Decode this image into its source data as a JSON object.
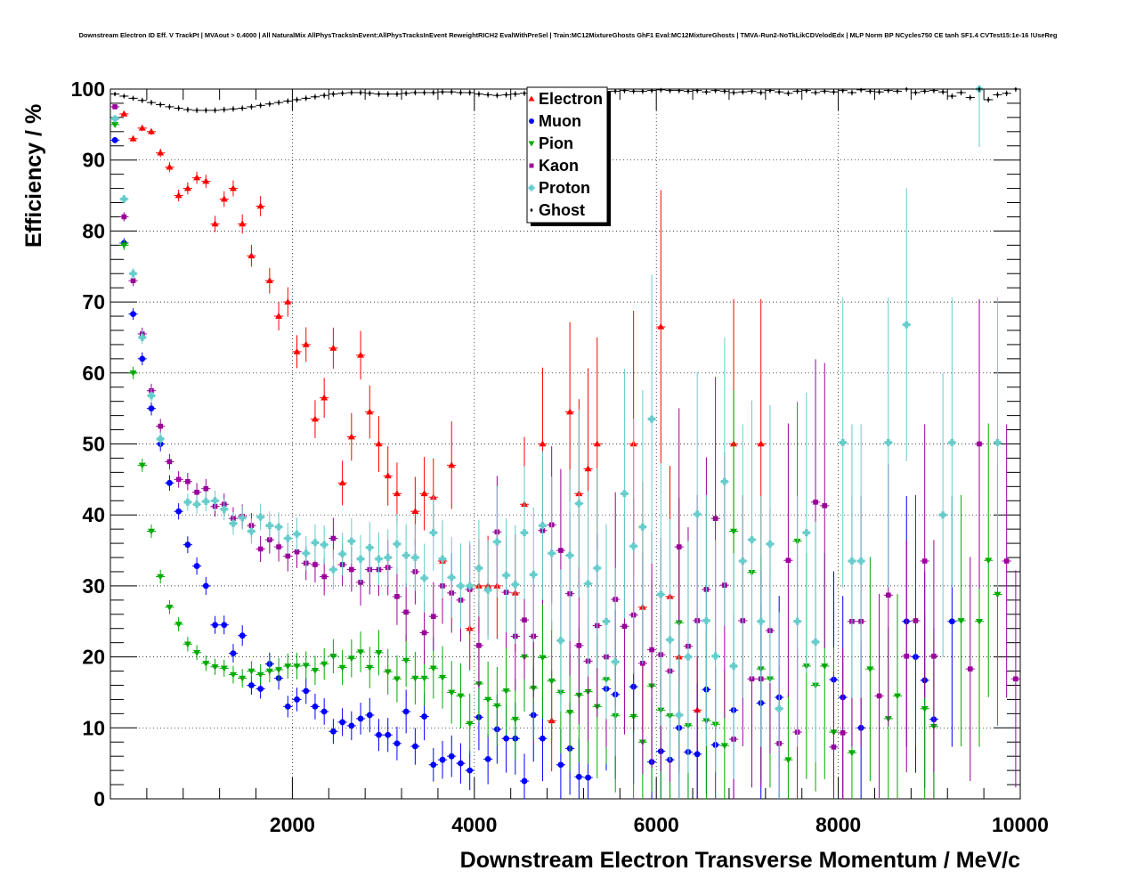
{
  "chart_data": {
    "type": "scatter",
    "title": "Downstream Electron ID Eff. V TrackPt | MVAout > 0.4000 | All NaturalMix AllPhysTracksInEvent:AllPhysTracksInEvent ReweightRICH2 EvalWithPreSel | Train:MC12MixtureGhosts GhF1 Eval:MC12MixtureGhosts | TMVA-Run2-NoTkLikCDVelodEdx | MLP Norm BP NCycles750 CE tanh SF1.4 CVTest15:1e-16 !UseReg",
    "xlabel": "Downstream Electron Transverse Momentum / MeV/c",
    "ylabel": "Efficiency / %",
    "xlim": [
      0,
      10000
    ],
    "ylim": [
      0,
      100
    ],
    "grid": true,
    "x_ticks": [
      "2000",
      "4000",
      "6000",
      "8000",
      "10000"
    ],
    "y_ticks": [
      "0",
      "10",
      "20",
      "30",
      "40",
      "50",
      "60",
      "70",
      "80",
      "90",
      "100"
    ],
    "legend_position": "top-center",
    "bin_width": 100,
    "bin_first_center": 50,
    "series": [
      {
        "name": "Electron",
        "color": "#ff0000",
        "marker": "triangle-up",
        "points": {
          "1": 96.5,
          "2": 93,
          "3": 94.5,
          "4": 94,
          "5": 91,
          "6": 89,
          "7": 85,
          "8": 86,
          "9": 87.5,
          "10": 87,
          "11": 81,
          "12": 84.5,
          "13": 86,
          "14": 81,
          "15": 76.5,
          "16": 83.5,
          "17": 73,
          "18": 68,
          "19": 70,
          "20": 63,
          "21": 64,
          "22": 53.5,
          "23": 56.5,
          "24": 63.5,
          "25": 44.5,
          "26": 51,
          "27": 62.5,
          "28": 54.5,
          "29": 50,
          "30": 45.5,
          "31": 43,
          "33": 40.5,
          "34": 43,
          "35": 42.5,
          "36": 33.5,
          "37": 47,
          "39": 24,
          "40": 30,
          "41": 30,
          "42": 30,
          "44": 29,
          "45": 41.5,
          "47": 50,
          "48": 11,
          "50": 54.5,
          "51": 43,
          "52": 46.5,
          "53": 50,
          "57": 50,
          "58": 27,
          "60": 66.5,
          "61": 28.5,
          "62": 20,
          "64": 12.5,
          "68": 50,
          "71": 50
        }
      },
      {
        "name": "Muon",
        "color": "#0000ff",
        "marker": "circle",
        "points": {
          "0": 92.8,
          "1": 78.3,
          "2": 68.3,
          "3": 62,
          "4": 55,
          "5": 50,
          "6": 44.5,
          "7": 40.5,
          "8": 35.8,
          "9": 32.8,
          "10": 30,
          "11": 24.5,
          "12": 24.5,
          "13": 20.5,
          "14": 23,
          "15": 16,
          "16": 15.5,
          "17": 19,
          "18": 17,
          "19": 13,
          "20": 14,
          "21": 15.2,
          "22": 13,
          "23": 12.3,
          "24": 9.5,
          "25": 10.8,
          "26": 10.3,
          "27": 11.3,
          "28": 11.8,
          "29": 9,
          "30": 9,
          "31": 7.8,
          "32": 12.3,
          "33": 7.4,
          "34": 11.6,
          "35": 4.8,
          "36": 5.5,
          "37": 6,
          "38": 5,
          "39": 4,
          "40": 11.5,
          "41": 5.6,
          "42": 9.8,
          "43": 8.5,
          "44": 8.5,
          "45": 2.5,
          "46": 11.8,
          "47": 8.5,
          "49": 4.8,
          "50": 7.1,
          "51": 3.1,
          "52": 3,
          "54": 15.5,
          "55": 14.7,
          "57": 15.8,
          "59": 5.2,
          "60": 6.7,
          "61": 5.5,
          "62": 10,
          "63": 6.6,
          "64": 6.3,
          "65": 15.4,
          "66": 7.6,
          "68": 12.5,
          "71": 13.5,
          "73": 14.3,
          "79": 16.8,
          "80": 14.3,
          "82": 10,
          "87": 25,
          "88": 20,
          "89": 16.7,
          "90": 11.2,
          "92": 25
        }
      },
      {
        "name": "Pion",
        "color": "#00aa00",
        "marker": "triangle-down",
        "points": {
          "0": 95,
          "1": 78,
          "2": 60,
          "3": 47,
          "4": 37.7,
          "5": 31.3,
          "6": 27,
          "7": 24.6,
          "8": 21.8,
          "9": 20.6,
          "10": 19.1,
          "11": 18.6,
          "12": 18.4,
          "13": 17.5,
          "14": 17,
          "15": 18,
          "16": 17.5,
          "17": 18,
          "18": 18.2,
          "19": 18.7,
          "20": 18.7,
          "21": 18.8,
          "22": 18.1,
          "23": 19,
          "24": 20.1,
          "25": 18.5,
          "26": 19.8,
          "27": 20.7,
          "28": 18.5,
          "29": 20.6,
          "30": 17.9,
          "31": 16.9,
          "32": 19.5,
          "33": 17,
          "34": 17,
          "35": 18.4,
          "36": 17.1,
          "37": 15,
          "38": 14.5,
          "39": 10.6,
          "40": 16.2,
          "41": 14,
          "42": 13.1,
          "43": 15.2,
          "44": 11.2,
          "45": 20,
          "46": 15.6,
          "47": 19.9,
          "48": 16.6,
          "49": 15,
          "50": 12.2,
          "51": 14.6,
          "52": 15.1,
          "53": 13,
          "54": 16.8,
          "55": 11.7,
          "57": 11.6,
          "58": 8,
          "59": 15.9,
          "60": 12.5,
          "61": 11.7,
          "62": 24.8,
          "63": 10.3,
          "65": 11,
          "66": 10.5,
          "67": 7.5,
          "68": 37.7,
          "70": 31.9,
          "71": 18.3,
          "72": 16.9,
          "74": 5.5,
          "75": 36.3,
          "76": 18.7,
          "77": 16,
          "78": 18.7,
          "79": 9.4,
          "81": 6.5,
          "83": 18.3,
          "85": 11.3,
          "86": 14.5,
          "89": 12.7,
          "90": 10.2,
          "93": 25.1,
          "95": 25,
          "96": 33.6,
          "97": 28.8
        }
      },
      {
        "name": "Kaon",
        "color": "#990099",
        "marker": "square",
        "points": {
          "0": 97.5,
          "1": 82,
          "2": 73,
          "3": 65.5,
          "4": 57.5,
          "5": 52.5,
          "6": 47.5,
          "7": 45,
          "8": 44.7,
          "9": 43.2,
          "10": 43.7,
          "11": 41.2,
          "12": 41.5,
          "13": 39.5,
          "14": 39.8,
          "15": 38.5,
          "16": 35.2,
          "17": 36.5,
          "18": 35.5,
          "19": 34.2,
          "20": 34.8,
          "21": 33.2,
          "22": 33,
          "23": 31.3,
          "24": 36.7,
          "25": 33,
          "26": 32.3,
          "27": 30.5,
          "28": 32.3,
          "29": 32.3,
          "30": 32.6,
          "31": 28.5,
          "32": 26.3,
          "33": 32,
          "34": 23.4,
          "35": 25.7,
          "36": 30,
          "37": 29,
          "38": 28,
          "39": 29.5,
          "40": 21.6,
          "42": 37.6,
          "43": 29.1,
          "44": 22.9,
          "45": 25.2,
          "46": 22.9,
          "47": 37.8,
          "48": 38.6,
          "49": 35,
          "50": 28.9,
          "51": 21.6,
          "52": 19.4,
          "53": 24.4,
          "54": 20,
          "55": 28.1,
          "56": 24.3,
          "57": 25.9,
          "58": 19.1,
          "59": 21,
          "60": 20.3,
          "61": 18,
          "62": 35.5,
          "63": 21.5,
          "64": 25.1,
          "65": 29.5,
          "66": 39.5,
          "67": 30.1,
          "68": 8.4,
          "69": 25.1,
          "70": 16.9,
          "71": 16.9,
          "72": 23.7,
          "73": 7.8,
          "74": 33.6,
          "75": 9.4,
          "77": 41.8,
          "78": 41.3,
          "79": 7.3,
          "80": 9.3,
          "81": 25,
          "82": 25,
          "84": 14.5,
          "85": 28.7,
          "87": 20.1,
          "88": 25.1,
          "89": 33.5,
          "90": 20.1,
          "94": 18.3,
          "95": 50,
          "98": 33.5,
          "99": 16.9
        }
      },
      {
        "name": "Proton",
        "color": "#66cccc",
        "marker": "cross",
        "points": {
          "0": 95.8,
          "1": 84.5,
          "2": 74,
          "3": 65,
          "4": 56.8,
          "5": 50.7,
          "8": 41.8,
          "9": 41.5,
          "10": 41.9,
          "11": 42,
          "12": 40.8,
          "13": 38.8,
          "14": 39.6,
          "15": 37.7,
          "16": 39.7,
          "17": 38.5,
          "18": 38.3,
          "19": 36.7,
          "20": 37.3,
          "21": 34.6,
          "22": 36.1,
          "23": 35.8,
          "24": 32.3,
          "25": 34.5,
          "26": 36.3,
          "27": 33.8,
          "28": 35.4,
          "29": 33.8,
          "30": 34,
          "31": 35.9,
          "32": 34.3,
          "33": 34,
          "34": 31.1,
          "35": 37.5,
          "36": 33.8,
          "37": 31.2,
          "38": 30,
          "39": 30,
          "40": 32.5,
          "41": 29.4,
          "42": 36.2,
          "43": 31.5,
          "44": 30.2,
          "45": 37.5,
          "46": 31.6,
          "47": 38.5,
          "48": 34.6,
          "49": 22.3,
          "50": 34.3,
          "51": 41.6,
          "52": 30.3,
          "53": 32.5,
          "54": 25,
          "55": 19.3,
          "56": 43,
          "57": 35.6,
          "58": 38.3,
          "59": 53.5,
          "60": 28.8,
          "61": 22.4,
          "62": 11.8,
          "63": 20,
          "64": 40.1,
          "65": 25.1,
          "66": 20.1,
          "67": 44.7,
          "68": 18.7,
          "69": 33.5,
          "70": 36.5,
          "71": 25,
          "72": 35.9,
          "73": 12.7,
          "75": 25,
          "76": 37.5,
          "77": 22.1,
          "80": 50.2,
          "81": 33.5,
          "82": 33.5,
          "85": 50.2,
          "87": 66.8,
          "91": 40,
          "92": 50.2,
          "95": 100,
          "97": 50.2
        }
      },
      {
        "name": "Ghost",
        "color": "#000000",
        "marker": "diamond",
        "values": [
          99.3,
          99,
          98.7,
          98.4,
          98.1,
          97.8,
          97.5,
          97.3,
          97.1,
          97,
          97,
          97,
          97.1,
          97.2,
          97.3,
          97.5,
          97.7,
          97.9,
          98.1,
          98.3,
          98.5,
          98.7,
          98.9,
          99.1,
          99.3,
          99.4,
          99.5,
          99.5,
          99.4,
          99.3,
          99.3,
          99.3,
          99.4,
          99.5,
          99.5,
          99.5,
          99.6,
          99.6,
          99.5,
          99.5,
          99.3,
          99.2,
          99.1,
          99.2,
          99.3,
          99.4,
          99.5,
          99.6,
          99.6,
          99.6,
          99.7,
          99.7,
          99.7,
          99.6,
          99.6,
          99.7,
          99.8,
          99.7,
          99.7,
          99.8,
          99.9,
          99.8,
          99.8,
          99.7,
          99.8,
          99.6,
          99.8,
          99.7,
          99.5,
          99.6,
          99.7,
          99.5,
          99.8,
          99.6,
          99.4,
          99.7,
          99.8,
          99.5,
          99.7,
          99.6,
          99.8,
          99.5,
          99.9,
          99.7,
          99.6,
          99.8,
          99.7,
          100,
          99.5,
          99.7,
          99.8,
          99.6,
          99,
          99.5,
          98.8,
          100,
          98.5,
          99.2,
          99.4,
          100
        ]
      }
    ]
  }
}
